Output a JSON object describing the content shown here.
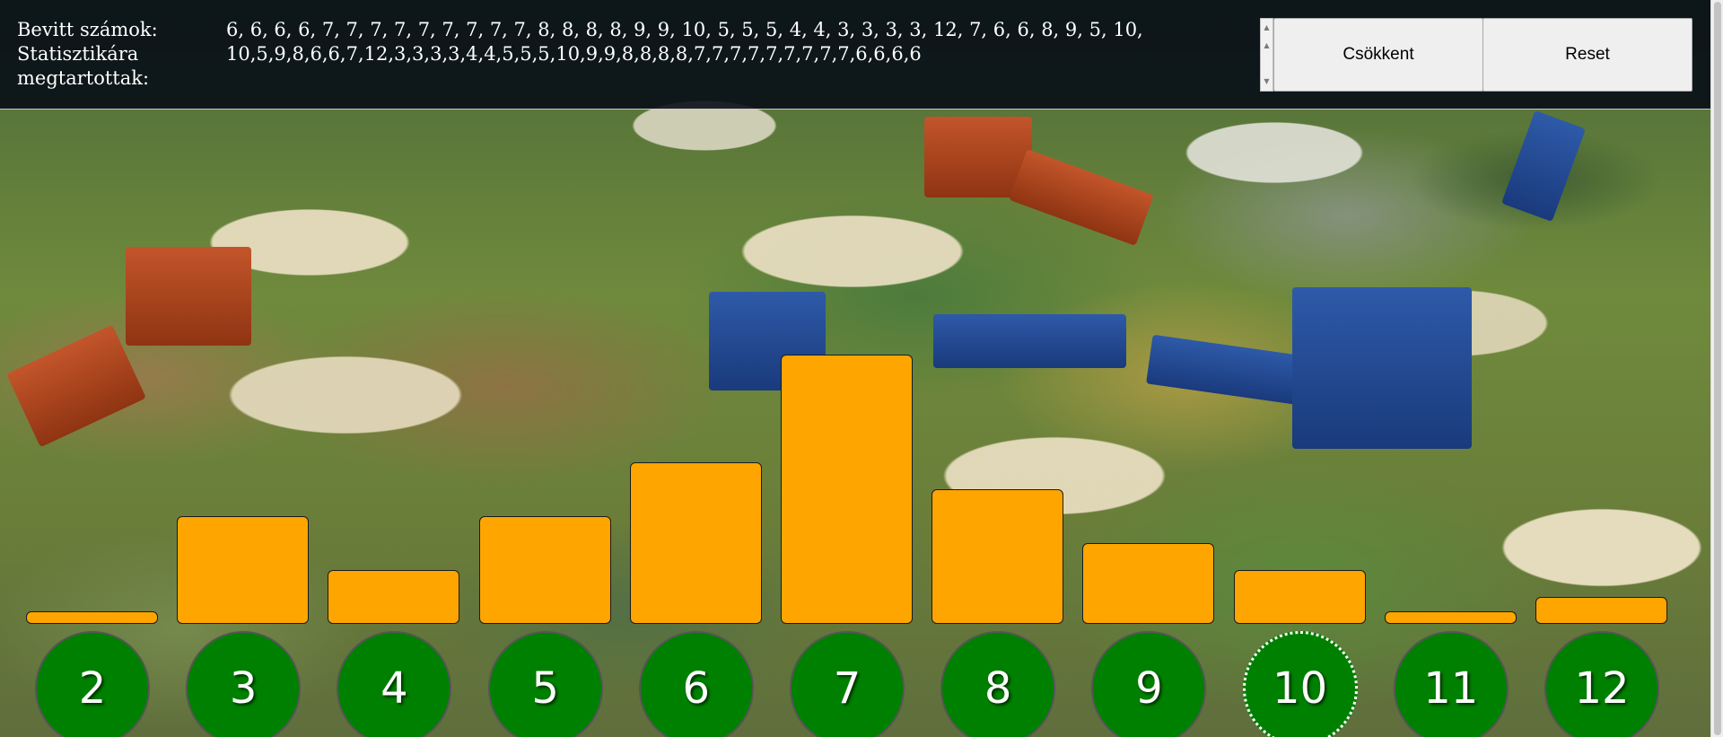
{
  "labels": {
    "entered": "Bevitt számok:",
    "kept_line1": "Statisztikára",
    "kept_line2": "megtartottak:"
  },
  "values": {
    "entered": "6, 6, 6, 6, 7, 7, 7, 7, 7, 7, 7, 7, 7, 8, 8, 8, 8, 9, 9, 10, 5, 5, 5, 4, 4, 3, 3, 3, 3, 12, 7, 6, 6, 8, 9, 5, 10,",
    "kept": "10,5,9,8,6,6,7,12,3,3,3,3,4,4,5,5,5,10,9,9,8,8,8,8,7,7,7,7,7,7,7,7,7,6,6,6,6"
  },
  "buttons": {
    "decrease": "Csökkent",
    "reset": "Reset"
  },
  "colors": {
    "bar": "#ffa500",
    "circle": "#008000"
  },
  "chart_data": {
    "type": "bar",
    "categories": [
      "2",
      "3",
      "4",
      "5",
      "6",
      "7",
      "8",
      "9",
      "10",
      "11",
      "12"
    ],
    "values": [
      0,
      4,
      2,
      4,
      6,
      10,
      5,
      3,
      2,
      0,
      1
    ],
    "selected": "10"
  }
}
